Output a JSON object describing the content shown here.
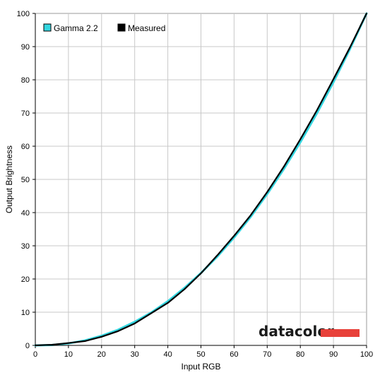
{
  "chart_data": {
    "type": "line",
    "xlabel": "Input RGB",
    "ylabel": "Output Brightness",
    "xlim": [
      0,
      100
    ],
    "ylim": [
      0,
      100
    ],
    "x_ticks": [
      "0",
      "10",
      "20",
      "30",
      "40",
      "50",
      "60",
      "70",
      "80",
      "90",
      "100"
    ],
    "y_ticks": [
      "0",
      "10",
      "20",
      "30",
      "40",
      "50",
      "60",
      "70",
      "80",
      "90",
      "100"
    ],
    "grid": true,
    "legend_position": "top-left",
    "x": [
      0,
      5,
      10,
      15,
      20,
      25,
      30,
      35,
      40,
      45,
      50,
      55,
      60,
      65,
      70,
      75,
      80,
      85,
      90,
      95,
      100
    ],
    "series": [
      {
        "name": "Gamma 2.2",
        "color": "#33d6e0",
        "values": [
          0,
          0.1,
          0.6,
          1.5,
          2.9,
          4.7,
          7.1,
          9.9,
          13.3,
          17.3,
          21.8,
          26.8,
          32.5,
          38.7,
          45.6,
          53.1,
          61.2,
          69.9,
          79.3,
          89.3,
          100
        ]
      },
      {
        "name": "Measured",
        "color": "#000000",
        "values": [
          0,
          0.2,
          0.7,
          1.3,
          2.6,
          4.3,
          6.6,
          9.7,
          12.8,
          16.9,
          21.7,
          27.2,
          33.0,
          39.2,
          46.2,
          53.8,
          62.1,
          70.8,
          80.2,
          89.8,
          100
        ]
      }
    ]
  },
  "logo": {
    "text": "datacolor",
    "bar_color": "#e8413a"
  }
}
